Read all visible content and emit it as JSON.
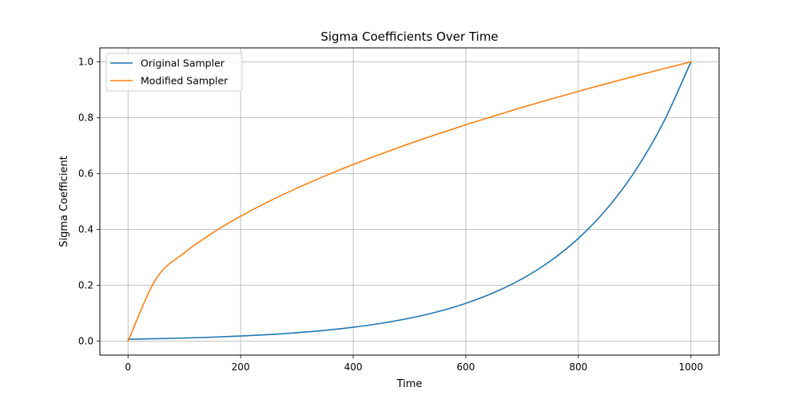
{
  "chart_data": {
    "type": "line",
    "title": "Sigma Coefficients Over Time",
    "xlabel": "Time",
    "ylabel": "Sigma Coefficient",
    "xlim": [
      -50,
      1050
    ],
    "ylim": [
      -0.05,
      1.05
    ],
    "xticks": [
      0,
      200,
      400,
      600,
      800,
      1000
    ],
    "yticks": [
      0.0,
      0.2,
      0.4,
      0.6,
      0.8,
      1.0
    ],
    "xtick_labels": [
      "0",
      "200",
      "400",
      "600",
      "800",
      "1000"
    ],
    "ytick_labels": [
      "0.0",
      "0.2",
      "0.4",
      "0.6",
      "0.8",
      "1.0"
    ],
    "grid": true,
    "legend_position": "top-left",
    "x": [
      0,
      50,
      100,
      150,
      200,
      250,
      300,
      350,
      400,
      450,
      500,
      550,
      600,
      650,
      700,
      750,
      800,
      850,
      900,
      950,
      1000
    ],
    "series": [
      {
        "name": "Original Sampler",
        "color": "#1f77b4",
        "values": [
          0.0067,
          0.0087,
          0.0111,
          0.0143,
          0.0183,
          0.0235,
          0.0302,
          0.0388,
          0.0498,
          0.0639,
          0.0821,
          0.1054,
          0.1353,
          0.1738,
          0.2231,
          0.2865,
          0.3679,
          0.4724,
          0.6065,
          0.7788,
          1.0
        ]
      },
      {
        "name": "Modified Sampler",
        "color": "#ff7f0e",
        "values": [
          0.0,
          0.2236,
          0.3162,
          0.3873,
          0.4472,
          0.5,
          0.5477,
          0.5916,
          0.6325,
          0.6708,
          0.7071,
          0.7416,
          0.7746,
          0.8062,
          0.8367,
          0.866,
          0.8944,
          0.922,
          0.9487,
          0.9747,
          1.0
        ]
      }
    ]
  }
}
